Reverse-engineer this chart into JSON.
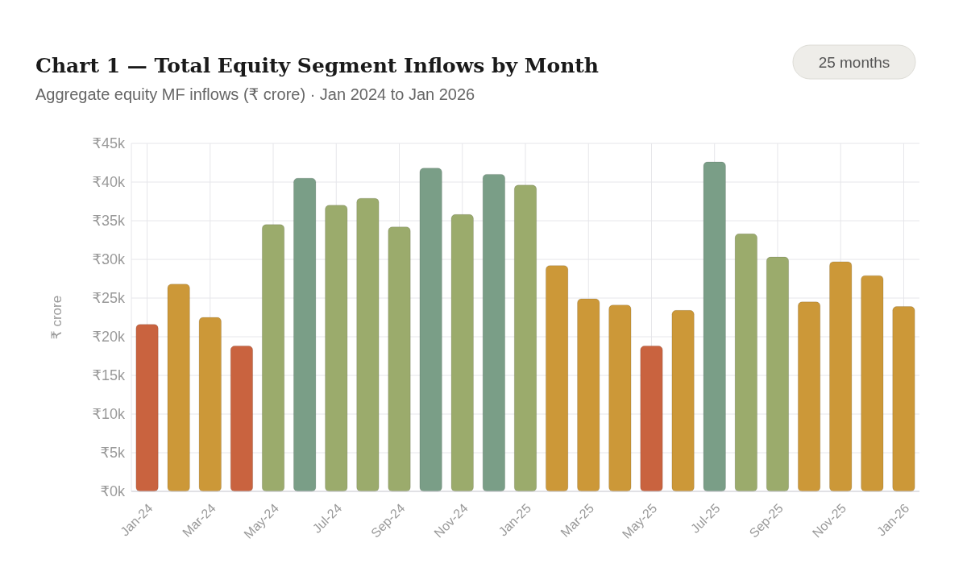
{
  "chart_data": {
    "type": "bar",
    "title": "Chart 1 — Total Equity Segment Inflows by Month",
    "subtitle": "Aggregate equity MF inflows (₹ crore) · Jan 2024 to Jan 2026",
    "annotations": [
      "25 months"
    ],
    "ylabel": "₹ crore",
    "categories": [
      "Jan-24",
      null,
      "Mar-24",
      null,
      "May-24",
      null,
      "Jul-24",
      null,
      "Sep-24",
      null,
      "Nov-24",
      null,
      "Jan-25",
      null,
      "Mar-25",
      null,
      "May-25",
      null,
      "Jul-25",
      null,
      "Sep-25",
      null,
      "Nov-25",
      null,
      "Jan-26"
    ],
    "values": [
      21.6,
      26.8,
      22.5,
      18.8,
      34.5,
      40.5,
      37.0,
      37.9,
      34.2,
      41.8,
      35.8,
      41.0,
      39.6,
      29.2,
      24.9,
      24.1,
      18.8,
      23.4,
      42.6,
      33.3,
      30.3,
      24.5,
      29.7,
      27.9,
      23.9
    ],
    "colors": [
      "#c9633f",
      "#cc9838",
      "#cc9838",
      "#c9633f",
      "#9bab6c",
      "#7a9e87",
      "#9bab6c",
      "#9bab6c",
      "#9bab6c",
      "#7a9e87",
      "#9bab6c",
      "#7a9e87",
      "#9bab6c",
      "#cc9838",
      "#cc9838",
      "#cc9838",
      "#c9633f",
      "#cc9838",
      "#7a9e87",
      "#9bab6c",
      "#9bab6c",
      "#cc9838",
      "#cc9838",
      "#cc9838",
      "#cc9838"
    ],
    "ylim": [
      0,
      45
    ],
    "yticks": [
      {
        "value": 0,
        "label": "₹0k"
      },
      {
        "value": 5,
        "label": "₹5k"
      },
      {
        "value": 10,
        "label": "₹10k"
      },
      {
        "value": 15,
        "label": "₹15k"
      },
      {
        "value": 20,
        "label": "₹20k"
      },
      {
        "value": 25,
        "label": "₹25k"
      },
      {
        "value": 30,
        "label": "₹30k"
      },
      {
        "value": 35,
        "label": "₹35k"
      },
      {
        "value": 40,
        "label": "₹40k"
      },
      {
        "value": 45,
        "label": "₹45k"
      }
    ],
    "grid": true
  }
}
